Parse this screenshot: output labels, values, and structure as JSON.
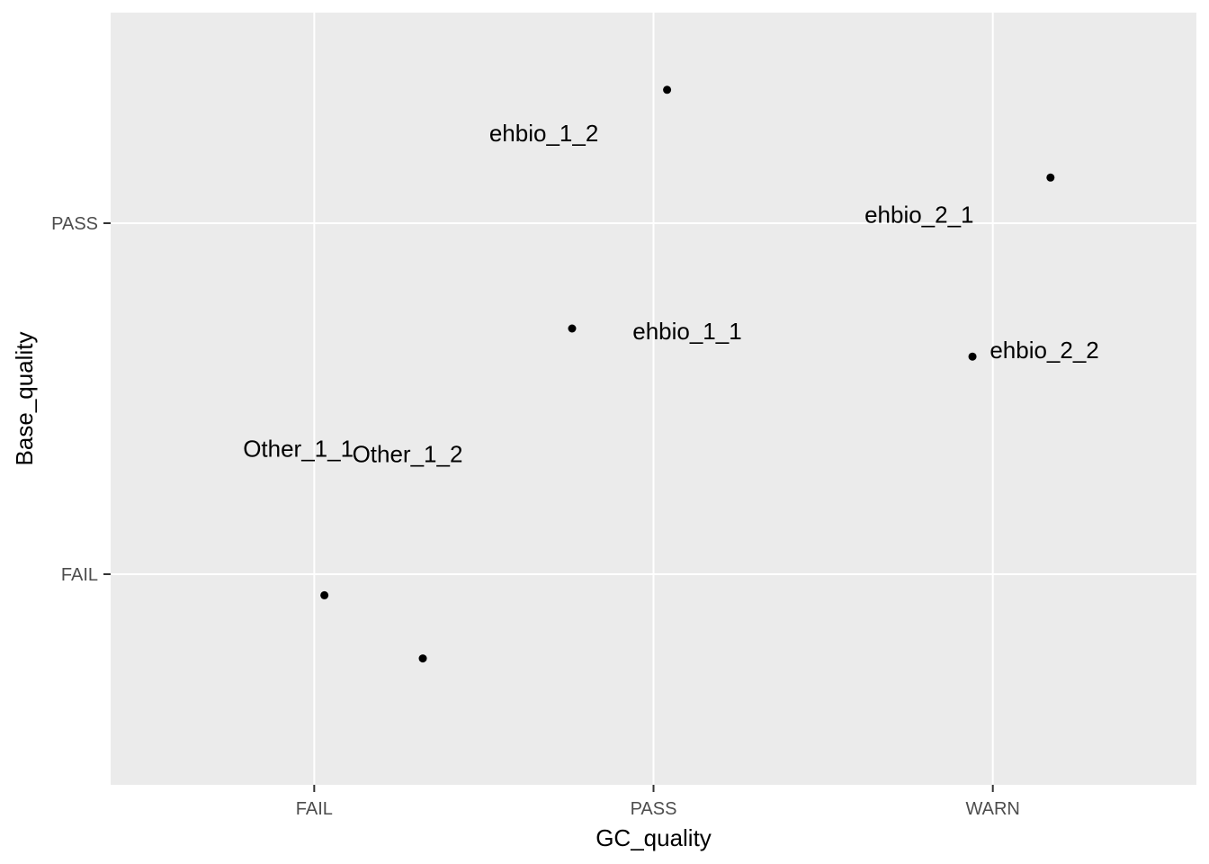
{
  "chart_data": {
    "type": "scatter",
    "title": "",
    "xlabel": "GC_quality",
    "ylabel": "Base_quality",
    "x_categories": [
      "FAIL",
      "PASS",
      "WARN"
    ],
    "y_categories": [
      "FAIL",
      "PASS"
    ],
    "grid": true,
    "legend": "none",
    "background_color": "#ebebeb",
    "gridline_color": "#ffffff",
    "point_color": "#000000",
    "points": [
      {
        "label": "ehbio_1_1",
        "x": "PASS",
        "y": "PASS",
        "x_jitter": -0.24,
        "y_jitter": -0.3
      },
      {
        "label": "ehbio_1_2",
        "x": "PASS",
        "y": "PASS",
        "x_jitter": 0.04,
        "y_jitter": 0.38
      },
      {
        "label": "ehbio_2_1",
        "x": "WARN",
        "y": "PASS",
        "x_jitter": 0.17,
        "y_jitter": 0.13
      },
      {
        "label": "ehbio_2_2",
        "x": "WARN",
        "y": "PASS",
        "x_jitter": -0.06,
        "y_jitter": -0.38
      },
      {
        "label": "Other_1_1",
        "x": "FAIL",
        "y": "FAIL",
        "x_jitter": 0.03,
        "y_jitter": -0.06
      },
      {
        "label": "Other_1_2",
        "x": "FAIL",
        "y": "FAIL",
        "x_jitter": 0.32,
        "y_jitter": -0.24
      }
    ]
  }
}
